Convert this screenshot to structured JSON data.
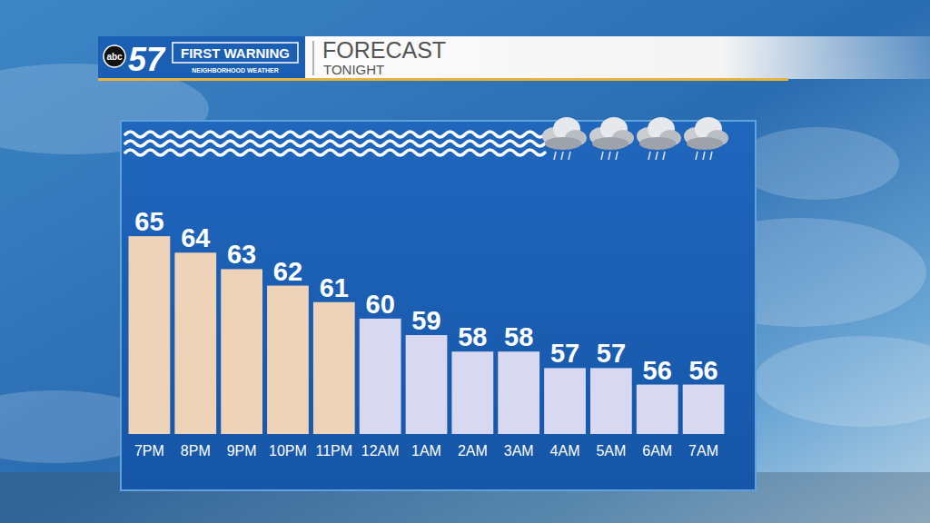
{
  "chart_data": {
    "type": "bar",
    "title": "FORECAST",
    "subtitle": "TONIGHT",
    "annotations": [
      "abc",
      "57",
      "FIRST WARNING",
      "NEIGHBORHOOD WEATHER"
    ],
    "categories": [
      "7PM",
      "8PM",
      "9PM",
      "10PM",
      "11PM",
      "12AM",
      "1AM",
      "2AM",
      "3AM",
      "4AM",
      "5AM",
      "6AM",
      "7AM"
    ],
    "values": [
      65,
      64,
      63,
      62,
      61,
      60,
      59,
      58,
      58,
      57,
      57,
      56,
      56
    ],
    "colors": [
      "#efd3b8",
      "#efd3b8",
      "#efd3b8",
      "#efd3b8",
      "#efd3b8",
      "#d8d9f0",
      "#d8d9f0",
      "#d8d9f0",
      "#d8d9f0",
      "#d8d9f0",
      "#d8d9f0",
      "#d8d9f0",
      "#d8d9f0"
    ],
    "ylim": [
      53,
      72
    ],
    "grid": false,
    "data_labels": true,
    "tick_labels": "x"
  }
}
